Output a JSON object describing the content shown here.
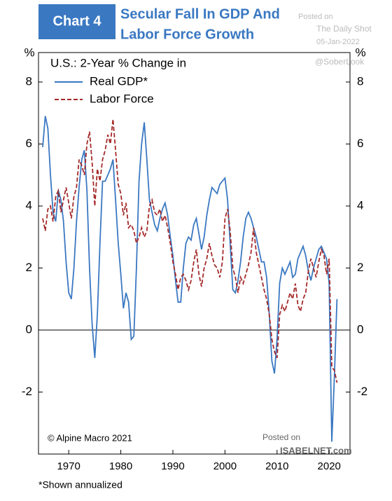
{
  "chart_data": {
    "type": "line",
    "badge": "Chart 4",
    "title": [
      "Secular Fall In GDP And",
      "Labor Force Growth"
    ],
    "watermark": [
      "Posted on",
      "The Daily Shot",
      "05-Jan-2022",
      "@SoberLook"
    ],
    "legend_title": "U.S.: 2-Year % Change in",
    "y_unit": "%",
    "source": "© Alpine Macro 2021",
    "footnote": "*Shown annualized",
    "posted": [
      "Posted on",
      "ISABELNET.com"
    ],
    "x": [
      1965,
      1965.5,
      1966,
      1966.5,
      1967,
      1967.5,
      1968,
      1968.5,
      1969,
      1969.5,
      1970,
      1970.5,
      1971,
      1971.5,
      1972,
      1972.5,
      1973,
      1973.5,
      1974,
      1974.5,
      1975,
      1975.5,
      1976,
      1976.5,
      1977,
      1977.5,
      1978,
      1978.5,
      1979,
      1979.5,
      1980,
      1980.5,
      1981,
      1981.5,
      1982,
      1982.5,
      1983,
      1983.5,
      1984,
      1984.5,
      1985,
      1985.5,
      1986,
      1986.5,
      1987,
      1987.5,
      1988,
      1988.5,
      1989,
      1989.5,
      1990,
      1990.5,
      1991,
      1991.5,
      1992,
      1992.5,
      1993,
      1993.5,
      1994,
      1994.5,
      1995,
      1995.5,
      1996,
      1996.5,
      1997,
      1997.5,
      1998,
      1998.5,
      1999,
      1999.5,
      2000,
      2000.5,
      2001,
      2001.5,
      2002,
      2002.5,
      2003,
      2003.5,
      2004,
      2004.5,
      2005,
      2005.5,
      2006,
      2006.5,
      2007,
      2007.5,
      2008,
      2008.5,
      2009,
      2009.5,
      2010,
      2010.5,
      2011,
      2011.5,
      2012,
      2012.5,
      2013,
      2013.5,
      2014,
      2014.5,
      2015,
      2015.5,
      2016,
      2016.5,
      2017,
      2017.5,
      2018,
      2018.5,
      2019,
      2019.5,
      2020,
      2020.5,
      2021,
      2021.5
    ],
    "series": [
      {
        "name": "Real GDP*",
        "color": "#3a78c2",
        "dashed": false,
        "values": [
          5.9,
          6.9,
          6.5,
          5.0,
          3.8,
          3.5,
          4.5,
          4.2,
          3.5,
          2.2,
          1.2,
          1.0,
          2.0,
          3.5,
          4.6,
          5.5,
          5.8,
          4.5,
          2.0,
          0.2,
          -0.9,
          0.5,
          2.8,
          4.8,
          4.8,
          5.0,
          5.2,
          5.5,
          4.2,
          2.8,
          1.8,
          0.7,
          1.2,
          0.9,
          -0.3,
          -0.2,
          2.0,
          4.8,
          6.0,
          6.7,
          5.5,
          4.2,
          3.8,
          3.4,
          3.2,
          3.6,
          3.9,
          4.1,
          3.7,
          3.0,
          2.4,
          1.6,
          0.9,
          0.9,
          2.0,
          2.8,
          3.0,
          2.9,
          3.4,
          3.6,
          3.1,
          2.6,
          3.0,
          3.7,
          4.2,
          4.6,
          4.5,
          4.4,
          4.7,
          4.8,
          4.9,
          4.2,
          2.8,
          1.3,
          1.2,
          1.6,
          2.2,
          3.0,
          3.6,
          3.8,
          3.6,
          3.3,
          3.0,
          2.6,
          2.2,
          2.2,
          1.7,
          0.5,
          -1.0,
          -1.4,
          -0.3,
          1.5,
          2.0,
          1.8,
          2.0,
          2.2,
          1.7,
          1.8,
          2.3,
          2.5,
          2.7,
          2.4,
          1.9,
          1.6,
          2.0,
          2.3,
          2.6,
          2.7,
          2.5,
          2.3,
          1.5,
          -3.6,
          -1.5,
          1.0
        ]
      },
      {
        "name": "Labor Force",
        "color": "#a52a2a",
        "dashed": true,
        "values": [
          3.6,
          3.2,
          3.9,
          4.0,
          3.5,
          4.3,
          4.5,
          3.8,
          4.2,
          4.6,
          4.1,
          3.6,
          4.3,
          4.6,
          5.5,
          5.3,
          5.0,
          6.0,
          6.4,
          5.4,
          4.0,
          5.2,
          4.8,
          5.5,
          5.8,
          6.3,
          6.0,
          6.8,
          5.8,
          4.7,
          4.4,
          3.7,
          4.1,
          3.3,
          3.4,
          3.2,
          2.8,
          3.0,
          3.3,
          3.0,
          3.2,
          4.0,
          4.2,
          3.8,
          3.7,
          3.9,
          3.5,
          3.7,
          3.3,
          2.8,
          2.2,
          1.8,
          1.3,
          1.7,
          1.8,
          1.6,
          1.3,
          1.6,
          2.2,
          2.6,
          1.8,
          1.4,
          2.0,
          2.3,
          2.8,
          2.4,
          2.1,
          2.0,
          1.7,
          2.2,
          3.6,
          3.9,
          3.2,
          2.0,
          1.7,
          1.2,
          1.7,
          1.5,
          1.8,
          2.1,
          2.5,
          3.3,
          2.5,
          2.1,
          1.7,
          1.3,
          1.0,
          0.5,
          -0.3,
          -0.7,
          -0.9,
          0.5,
          0.8,
          0.6,
          0.9,
          1.2,
          1.0,
          1.5,
          0.8,
          0.6,
          1.0,
          1.2,
          1.9,
          2.3,
          2.0,
          1.7,
          2.2,
          2.6,
          2.4,
          1.8,
          2.3,
          -1.2,
          -1.3,
          -1.7
        ]
      }
    ],
    "xlim": [
      1964.2,
      2024
    ],
    "xticks": [
      1970,
      1980,
      1990,
      2000,
      2010,
      2020
    ],
    "ylim": [
      -4,
      8.95
    ],
    "yticks": [
      -2,
      0,
      2,
      4,
      6,
      8
    ]
  }
}
